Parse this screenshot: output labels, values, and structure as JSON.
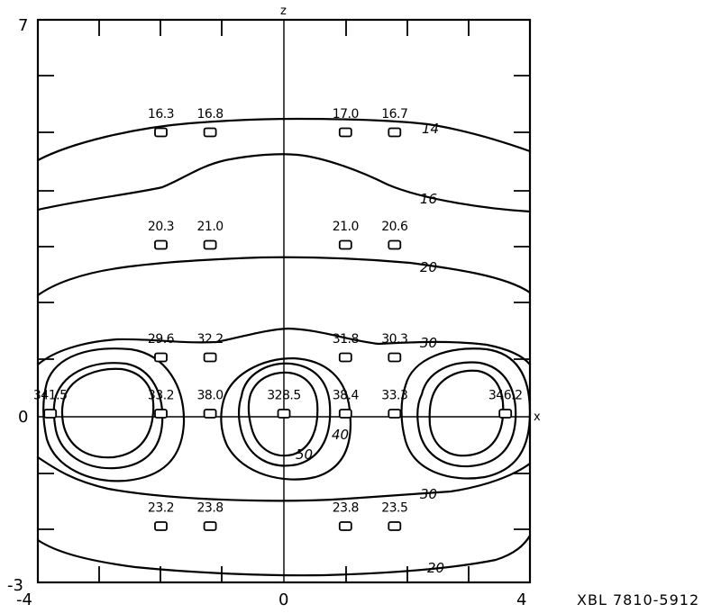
{
  "chart_data": {
    "type": "contour",
    "title": "",
    "xlabel": "x",
    "ylabel": "z",
    "xlim": [
      -4,
      4
    ],
    "ylim": [
      -3,
      7
    ],
    "x_tick_labels": [
      "-4",
      "0",
      "4"
    ],
    "y_tick_labels": [
      "7",
      "0",
      "-3"
    ],
    "caption": "XBL 7810-5912",
    "points": [
      {
        "x": -2.0,
        "z": 5.0,
        "label": "16.3"
      },
      {
        "x": -1.2,
        "z": 5.0,
        "label": "16.8"
      },
      {
        "x": 1.0,
        "z": 5.0,
        "label": "17.0"
      },
      {
        "x": 1.8,
        "z": 5.0,
        "label": "16.7"
      },
      {
        "x": -2.0,
        "z": 3.0,
        "label": "20.3"
      },
      {
        "x": -1.2,
        "z": 3.0,
        "label": "21.0"
      },
      {
        "x": 1.0,
        "z": 3.0,
        "label": "21.0"
      },
      {
        "x": 1.8,
        "z": 3.0,
        "label": "20.6"
      },
      {
        "x": -2.0,
        "z": 1.0,
        "label": "29.6"
      },
      {
        "x": -1.2,
        "z": 1.0,
        "label": "32.2"
      },
      {
        "x": 1.0,
        "z": 1.0,
        "label": "31.8"
      },
      {
        "x": 1.8,
        "z": 1.0,
        "label": "30.3"
      },
      {
        "x": -3.8,
        "z": 0.0,
        "label": "341.5"
      },
      {
        "x": -2.0,
        "z": 0.0,
        "label": "33.2"
      },
      {
        "x": -1.2,
        "z": 0.0,
        "label": "38.0"
      },
      {
        "x": 0.0,
        "z": 0.0,
        "label": "328.5"
      },
      {
        "x": 1.0,
        "z": 0.0,
        "label": "38.4"
      },
      {
        "x": 1.8,
        "z": 0.0,
        "label": "33.3"
      },
      {
        "x": 3.6,
        "z": 0.0,
        "label": "346.2"
      },
      {
        "x": -2.0,
        "z": -2.0,
        "label": "23.2"
      },
      {
        "x": -1.2,
        "z": -2.0,
        "label": "23.8"
      },
      {
        "x": 1.0,
        "z": -2.0,
        "label": "23.8"
      },
      {
        "x": 1.8,
        "z": -2.0,
        "label": "23.5"
      }
    ],
    "contour_levels": [
      "14",
      "16",
      "20",
      "30",
      "40",
      "50",
      "30",
      "20"
    ]
  }
}
